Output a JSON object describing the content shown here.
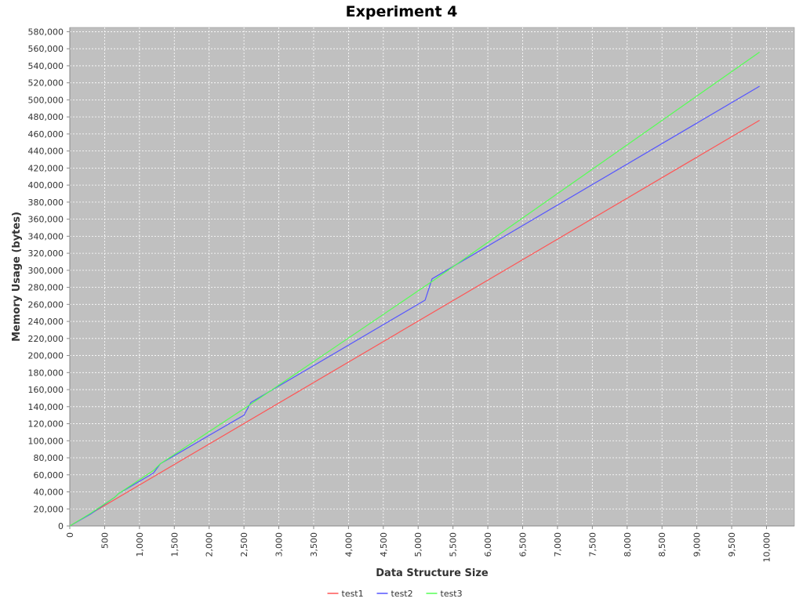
{
  "chart_data": {
    "type": "line",
    "title": "Experiment 4",
    "xlabel": "Data Structure Size",
    "ylabel": "Memory Usage (bytes)",
    "xlim": [
      0,
      10400
    ],
    "ylim": [
      0,
      585000
    ],
    "x_ticks": [
      0,
      500,
      1000,
      1500,
      2000,
      2500,
      3000,
      3500,
      4000,
      4500,
      5000,
      5500,
      6000,
      6500,
      7000,
      7500,
      8000,
      8500,
      9000,
      9500,
      10000
    ],
    "x_tick_labels": [
      "0",
      "500",
      "1,000",
      "1,500",
      "2,000",
      "2,500",
      "3,000",
      "3,500",
      "4,000",
      "4,500",
      "5,000",
      "5,500",
      "6,000",
      "6,500",
      "7,000",
      "7,500",
      "8,000",
      "8,500",
      "9,000",
      "9,500",
      "10,000"
    ],
    "y_ticks": [
      0,
      20000,
      40000,
      60000,
      80000,
      100000,
      120000,
      140000,
      160000,
      180000,
      200000,
      220000,
      240000,
      260000,
      280000,
      300000,
      320000,
      340000,
      360000,
      380000,
      400000,
      420000,
      440000,
      460000,
      480000,
      500000,
      520000,
      540000,
      560000,
      580000
    ],
    "y_tick_labels": [
      "0",
      "20,000",
      "40,000",
      "60,000",
      "80,000",
      "100,000",
      "120,000",
      "140,000",
      "160,000",
      "180,000",
      "200,000",
      "220,000",
      "240,000",
      "260,000",
      "280,000",
      "300,000",
      "320,000",
      "340,000",
      "360,000",
      "380,000",
      "400,000",
      "420,000",
      "440,000",
      "460,000",
      "480,000",
      "500,000",
      "520,000",
      "540,000",
      "560,000",
      "580,000"
    ],
    "grid": true,
    "legend_position": "bottom-center",
    "series": [
      {
        "name": "test1",
        "color": "#ff5555",
        "points": [
          [
            0,
            0
          ],
          [
            9900,
            476000
          ]
        ]
      },
      {
        "name": "test2",
        "color": "#5555ff",
        "points": [
          [
            0,
            0
          ],
          [
            300,
            14000
          ],
          [
            650,
            34000
          ],
          [
            700,
            38000
          ],
          [
            1200,
            62000
          ],
          [
            1300,
            73000
          ],
          [
            2500,
            130000
          ],
          [
            2600,
            145000
          ],
          [
            5100,
            265000
          ],
          [
            5200,
            290000
          ],
          [
            9900,
            516000
          ]
        ]
      },
      {
        "name": "test3",
        "color": "#55ff55",
        "points": [
          [
            0,
            0
          ],
          [
            300,
            15000
          ],
          [
            650,
            34000
          ],
          [
            700,
            38000
          ],
          [
            1200,
            65000
          ],
          [
            1300,
            73000
          ],
          [
            2600,
            143000
          ],
          [
            5200,
            287000
          ],
          [
            9900,
            556000
          ]
        ]
      }
    ]
  }
}
